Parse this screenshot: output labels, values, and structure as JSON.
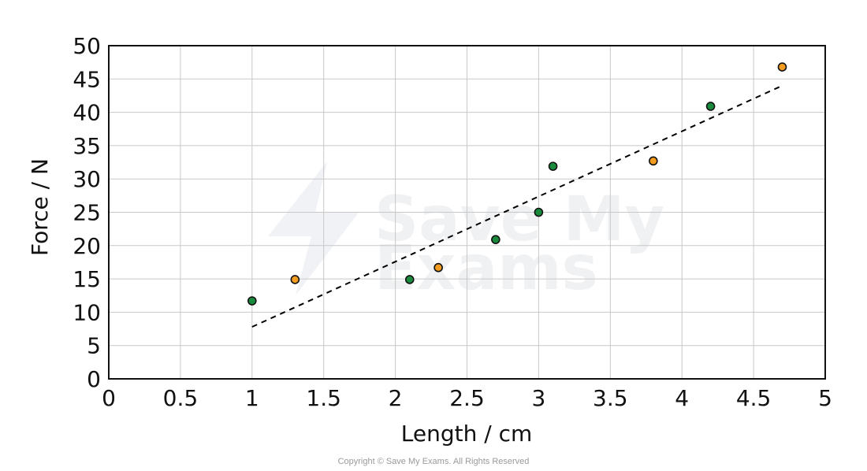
{
  "chart_data": {
    "type": "scatter",
    "title": "",
    "xlabel": "Length / cm",
    "ylabel": "Force / N",
    "xlim": [
      0,
      5
    ],
    "ylim": [
      0,
      50
    ],
    "x_ticks": [
      "0",
      "0.5",
      "1",
      "1.5",
      "2",
      "2.5",
      "3",
      "3.5",
      "4",
      "4.5",
      "5"
    ],
    "y_ticks": [
      "0",
      "5",
      "10",
      "15",
      "20",
      "25",
      "30",
      "35",
      "40",
      "45",
      "50"
    ],
    "grid": true,
    "legend": "none",
    "series": [
      {
        "color": "#1a8a3c",
        "points": [
          {
            "x": 1.0,
            "y": 11.7
          },
          {
            "x": 2.1,
            "y": 14.9
          },
          {
            "x": 2.7,
            "y": 20.9
          },
          {
            "x": 3.0,
            "y": 25.0
          },
          {
            "x": 3.1,
            "y": 31.9
          },
          {
            "x": 4.2,
            "y": 40.9
          }
        ]
      },
      {
        "color": "#f39c1f",
        "points": [
          {
            "x": 1.3,
            "y": 14.9
          },
          {
            "x": 2.3,
            "y": 16.7
          },
          {
            "x": 3.8,
            "y": 32.7
          },
          {
            "x": 4.7,
            "y": 46.8
          }
        ]
      }
    ],
    "trend_line": {
      "style": "dashed",
      "color": "#000000",
      "start": {
        "x": 1.0,
        "y": 7.8
      },
      "end": {
        "x": 4.7,
        "y": 44.0
      }
    }
  },
  "watermark": {
    "line1": "Save My",
    "line2": "Exams"
  },
  "copyright": "Copyright © Save My Exams. All Rights Reserved"
}
